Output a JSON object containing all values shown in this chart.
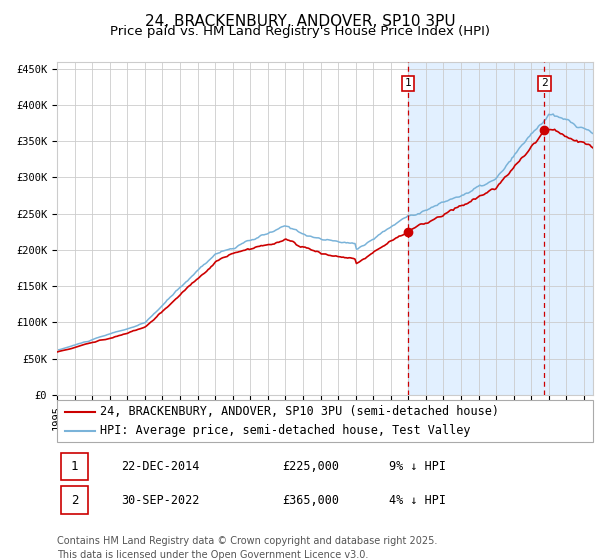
{
  "title": "24, BRACKENBURY, ANDOVER, SP10 3PU",
  "subtitle": "Price paid vs. HM Land Registry's House Price Index (HPI)",
  "ylim": [
    0,
    460000
  ],
  "yticks": [
    0,
    50000,
    100000,
    150000,
    200000,
    250000,
    300000,
    350000,
    400000,
    450000
  ],
  "ytick_labels": [
    "£0",
    "£50K",
    "£100K",
    "£150K",
    "£200K",
    "£250K",
    "£300K",
    "£350K",
    "£400K",
    "£450K"
  ],
  "hpi_color": "#7ab3d9",
  "price_color": "#cc0000",
  "purchase1_date": 2014.97,
  "purchase1_price": 225000,
  "purchase2_date": 2022.75,
  "purchase2_price": 365000,
  "legend_price": "24, BRACKENBURY, ANDOVER, SP10 3PU (semi-detached house)",
  "legend_hpi": "HPI: Average price, semi-detached house, Test Valley",
  "footer": "Contains HM Land Registry data © Crown copyright and database right 2025.\nThis data is licensed under the Open Government Licence v3.0.",
  "bg_shade_color": "#ddeeff",
  "grid_color": "#cccccc",
  "title_fontsize": 11,
  "subtitle_fontsize": 9.5,
  "tick_fontsize": 7.5,
  "legend_fontsize": 8.5,
  "annotation_fontsize": 8.5,
  "footer_fontsize": 7
}
